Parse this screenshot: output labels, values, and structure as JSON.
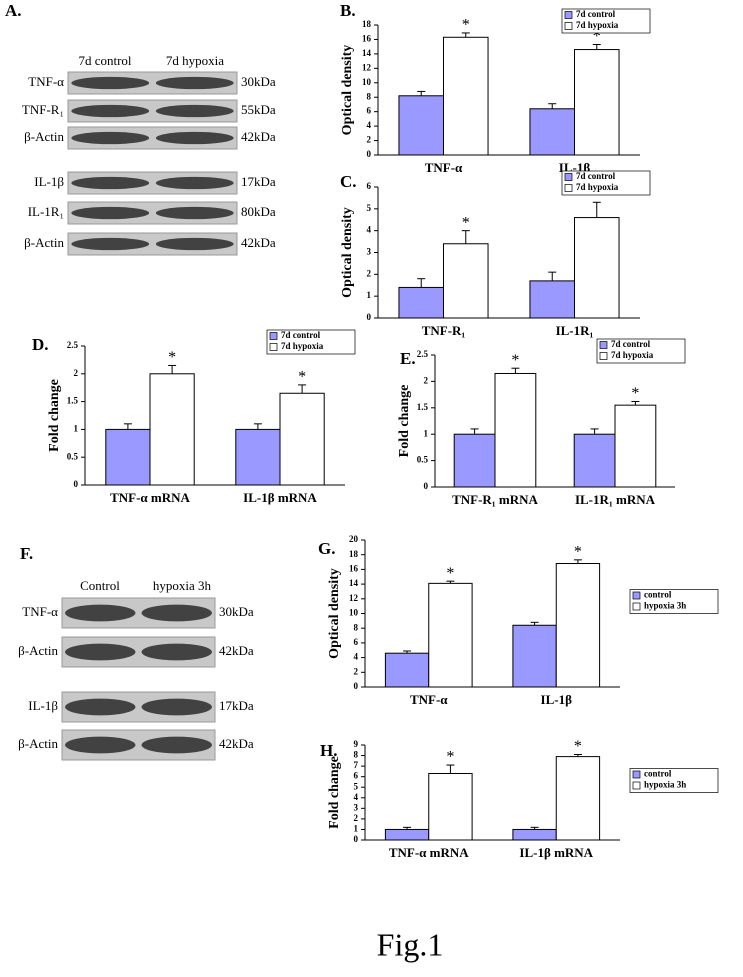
{
  "blots": [
    {
      "label": "A.",
      "lanes": [
        "7d control",
        "7d hypoxia"
      ],
      "rows": [
        {
          "name": "TNF-α",
          "size": "30kDa"
        },
        {
          "name": "TNF-R₁",
          "size": "55kDa"
        },
        {
          "name": "β-Actin",
          "size": "42kDa"
        },
        {
          "name": "IL-1β",
          "size": "17kDa"
        },
        {
          "name": "IL-1R₁",
          "size": "80kDa"
        },
        {
          "name": "β-Actin",
          "size": "42kDa"
        }
      ]
    },
    {
      "label": "F.",
      "lanes": [
        "Control",
        "hypoxia 3h"
      ],
      "rows": [
        {
          "name": "TNF-α",
          "size": "30kDa"
        },
        {
          "name": "β-Actin",
          "size": "42kDa"
        },
        {
          "name": "IL-1β",
          "size": "17kDa"
        },
        {
          "name": "β-Actin",
          "size": "42kDa"
        }
      ]
    }
  ],
  "caption": "Fig.1",
  "chart_data": [
    {
      "type": "bar",
      "label": "B.",
      "y_label": "Optical density",
      "annotation": "*",
      "legend": "top-right",
      "categories": [
        "TNF-α",
        "IL-1β"
      ],
      "ylim": [
        0,
        18
      ],
      "yticks": [
        0,
        2,
        4,
        6,
        8,
        10,
        12,
        14,
        16,
        18
      ],
      "series": [
        {
          "name": "7d control",
          "color": "#9999ff",
          "values": [
            8.2,
            6.4
          ],
          "errors": [
            0.6,
            0.7
          ]
        },
        {
          "name": "7d hypoxia",
          "color": "#ffffff",
          "values": [
            16.3,
            14.6
          ],
          "errors": [
            0.6,
            0.7
          ]
        }
      ]
    },
    {
      "type": "bar",
      "label": "C.",
      "y_label": "Optical density",
      "annotation": "*",
      "legend": "top-right",
      "categories": [
        "TNF-R₁",
        "IL-1R₁"
      ],
      "ylim": [
        0,
        6
      ],
      "yticks": [
        0,
        1,
        2,
        3,
        4,
        5,
        6
      ],
      "series": [
        {
          "name": "7d control",
          "color": "#9999ff",
          "values": [
            1.4,
            1.7
          ],
          "errors": [
            0.4,
            0.4
          ]
        },
        {
          "name": "7d hypoxia",
          "color": "#ffffff",
          "values": [
            3.4,
            4.6
          ],
          "errors": [
            0.6,
            0.7
          ]
        }
      ]
    },
    {
      "type": "bar",
      "label": "D.",
      "y_label": "Fold change",
      "annotation": "*",
      "legend": "top-right",
      "categories": [
        "TNF-α mRNA",
        "IL-1β mRNA"
      ],
      "ylim": [
        0,
        2.5
      ],
      "yticks": [
        0,
        0.5,
        1,
        1.5,
        2,
        2.5
      ],
      "series": [
        {
          "name": "7d control",
          "color": "#9999ff",
          "values": [
            1,
            1
          ],
          "errors": [
            0.1,
            0.1
          ]
        },
        {
          "name": "7d hypoxia",
          "color": "#ffffff",
          "values": [
            2.0,
            1.65
          ],
          "errors": [
            0.15,
            0.15
          ]
        }
      ]
    },
    {
      "type": "bar",
      "label": "E.",
      "y_label": "Fold change",
      "annotation": "*",
      "legend": "top-right",
      "categories": [
        "TNF-R₁ mRNA",
        "IL-1R₁ mRNA"
      ],
      "ylim": [
        0,
        2.5
      ],
      "yticks": [
        0,
        0.5,
        1,
        1.5,
        2,
        2.5
      ],
      "series": [
        {
          "name": "7d control",
          "color": "#9999ff",
          "values": [
            1,
            1
          ],
          "errors": [
            0.1,
            0.1
          ]
        },
        {
          "name": "7d hypoxia",
          "color": "#ffffff",
          "values": [
            2.15,
            1.55
          ],
          "errors": [
            0.1,
            0.07
          ]
        }
      ]
    },
    {
      "type": "bar",
      "label": "G.",
      "y_label": "Optical density",
      "annotation": "*",
      "legend": "right",
      "categories": [
        "TNF-α",
        "IL-1β"
      ],
      "ylim": [
        0,
        20
      ],
      "yticks": [
        0,
        2,
        4,
        6,
        8,
        10,
        12,
        14,
        16,
        18,
        20
      ],
      "series": [
        {
          "name": "control",
          "color": "#9999ff",
          "values": [
            4.6,
            8.4
          ],
          "errors": [
            0.3,
            0.4
          ]
        },
        {
          "name": "hypoxia 3h",
          "color": "#ffffff",
          "values": [
            14.1,
            16.8
          ],
          "errors": [
            0.3,
            0.5
          ]
        }
      ]
    },
    {
      "type": "bar",
      "label": "H.",
      "y_label": "Fold change",
      "annotation": "*",
      "legend": "right",
      "categories": [
        "TNF-α mRNA",
        "IL-1β mRNA"
      ],
      "ylim": [
        0,
        9
      ],
      "yticks": [
        0,
        1,
        2,
        3,
        4,
        5,
        6,
        7,
        8,
        9
      ],
      "series": [
        {
          "name": "control",
          "color": "#9999ff",
          "values": [
            1,
            1
          ],
          "errors": [
            0.2,
            0.2
          ]
        },
        {
          "name": "hypoxia 3h",
          "color": "#ffffff",
          "values": [
            6.3,
            7.9
          ],
          "errors": [
            0.8,
            0.2
          ]
        }
      ]
    }
  ]
}
